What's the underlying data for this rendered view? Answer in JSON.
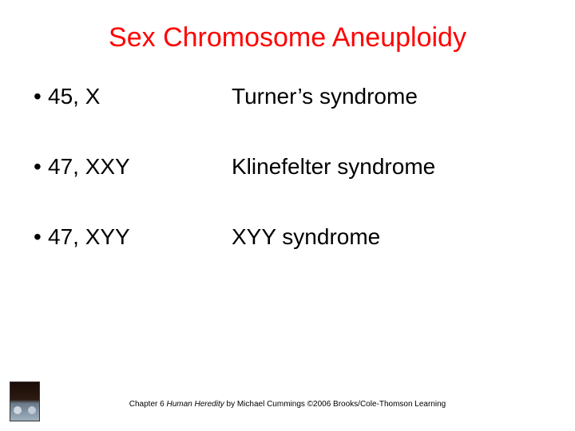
{
  "title": "Sex Chromosome Aneuploidy",
  "title_color": "#ff0000",
  "title_fontsize": 34,
  "body_fontsize": 28,
  "body_color": "#000000",
  "background_color": "#ffffff",
  "bullet_char": "•",
  "items": [
    {
      "karyotype": "45, X",
      "syndrome": "Turner’s syndrome"
    },
    {
      "karyotype": "47, XXY",
      "syndrome": "Klinefelter syndrome"
    },
    {
      "karyotype": "47, XYY",
      "syndrome": "XYY syndrome"
    }
  ],
  "footer": {
    "prefix": "Chapter 6 ",
    "book_title": "Human Heredity",
    "suffix": " by Michael Cummings ©2006 Brooks/Cole-Thomson Learning",
    "fontsize": 10
  }
}
